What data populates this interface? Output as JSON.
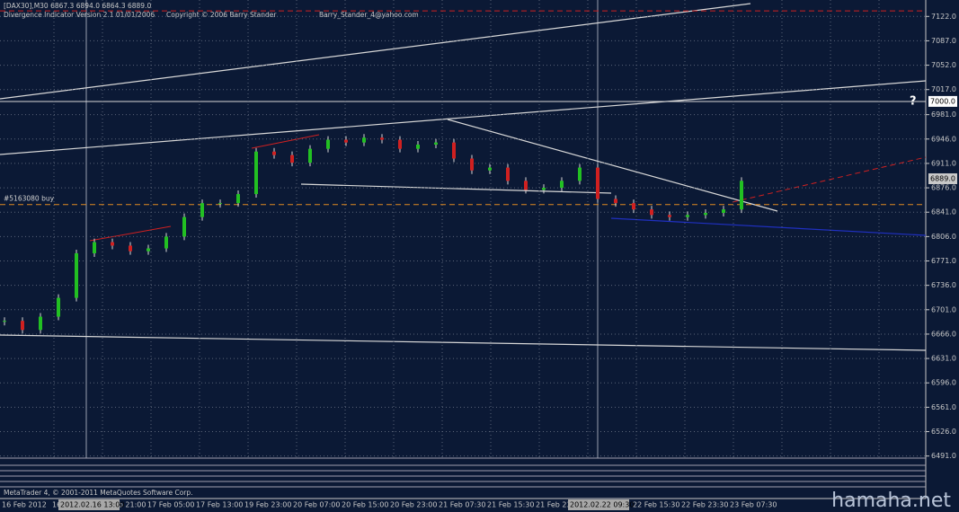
{
  "header": {
    "symbol_line": "[DAX30],M30  6867.3 6894.0 6864.3 6889.0",
    "indicator": "Divergence Indicator Version 2.1  01/01/2006",
    "copyright": "Copyright © 2006 Barry Stander",
    "email": "Barry_Stander_4@yahoo.com"
  },
  "chart_data": {
    "type": "candlestick",
    "ylim": [
      6488,
      7143
    ],
    "yticks": [
      {
        "value": 7122,
        "label": "7122.0"
      },
      {
        "value": 7087,
        "label": "7087.0"
      },
      {
        "value": 7052,
        "label": "7052.0"
      },
      {
        "value": 7017,
        "label": "7017.0"
      },
      {
        "value": 6981,
        "label": "6981.0"
      },
      {
        "value": 6946,
        "label": "6946.0"
      },
      {
        "value": 6911,
        "label": "6911.0"
      },
      {
        "value": 6876,
        "label": "6876.0"
      },
      {
        "value": 6841,
        "label": "6841.0"
      },
      {
        "value": 6806,
        "label": "6806.0"
      },
      {
        "value": 6771,
        "label": "6771.0"
      },
      {
        "value": 6736,
        "label": "6736.0"
      },
      {
        "value": 6701,
        "label": "6701.0"
      },
      {
        "value": 6666,
        "label": "6666.0"
      },
      {
        "value": 6631,
        "label": "6631.0"
      },
      {
        "value": 6596,
        "label": "6596.0"
      },
      {
        "value": 6561,
        "label": "6561.0"
      },
      {
        "value": 6526,
        "label": "6526.0"
      },
      {
        "value": 6491,
        "label": "6491.0"
      }
    ],
    "time_labels": [
      "16 Feb 2012",
      "16",
      "16 Feb 21:00",
      "17 Feb 05:00",
      "17 Feb 13:00",
      "19 Feb 23:00",
      "20 Feb 07:00",
      "20 Feb 15:00",
      "20 Feb 23:00",
      "21 Feb 07:30",
      "21 Feb 15:30",
      "21 Feb 23:30",
      "22 Feb 15:30",
      "22 Feb 23:30",
      "23 Feb 07:30"
    ],
    "crosshair_labels": [
      "2012.02.16 13:00",
      "2012.02.22 09:30"
    ],
    "values": [
      6685,
      6672,
      6691,
      6718,
      6782,
      6798,
      6793,
      6785,
      6789,
      6806,
      6834,
      6854,
      6854,
      6867,
      6928,
      6923,
      6912,
      6932,
      6945,
      6941,
      6948,
      6945,
      6932,
      6938,
      6941,
      6918,
      6901,
      6905,
      6886,
      6873,
      6876,
      6886,
      6905,
      6860,
      6854,
      6845,
      6837,
      6834,
      6837,
      6840,
      6845,
      6886
    ],
    "up_color": "#22c022",
    "down_color": "#d02020",
    "levels": [
      {
        "value": 7130,
        "color": "#d02020"
      },
      {
        "value": 6852,
        "color": "#e08a20",
        "label": "#5163080 buy"
      },
      {
        "value": 6889,
        "color": "#c8c8c8",
        "label": "6889.0"
      },
      {
        "value": 7000,
        "color": "#ffffff",
        "label": "7000.0"
      }
    ],
    "marker": "?"
  },
  "footer": {
    "platform": "MetaTrader 4, © 2001-2011 MetaQuotes Software Corp.",
    "watermark": "hamaha.net"
  }
}
